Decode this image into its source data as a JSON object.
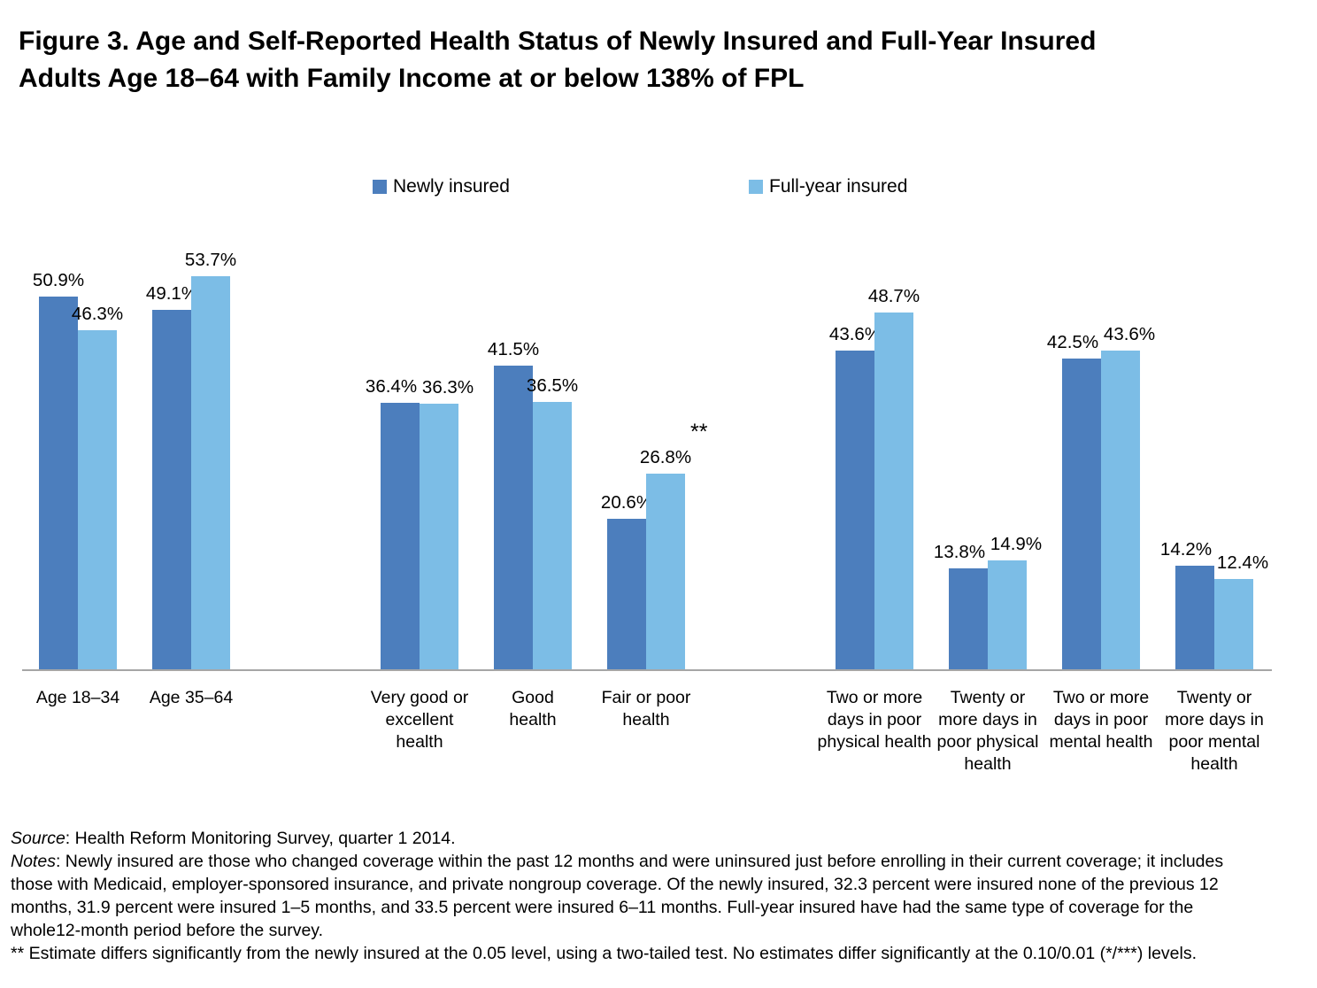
{
  "figure": {
    "title_lines": [
      "Figure 3. Age and Self-Reported Health Status of Newly Insured and Full-Year Insured",
      "Adults Age 18–64 with Family Income at or below 138% of FPL"
    ]
  },
  "chart_data": {
    "type": "bar",
    "title": "Figure 3. Age and Self-Reported Health Status of Newly Insured and Full-Year Insured Adults Age 18–64 with Family Income at or below 138% of FPL",
    "ylim": [
      0,
      60
    ],
    "grid": false,
    "legend_position": "top",
    "value_suffix": "%",
    "axis_color": "#a6a6a6",
    "series": [
      {
        "name": "Newly insured",
        "color": "#4c7ebd"
      },
      {
        "name": "Full-year insured",
        "color": "#7cbde6"
      }
    ],
    "groups": [
      {
        "categories": [
          {
            "label": "Age 18–34",
            "label_lines": [
              "Age 18–34"
            ],
            "values": [
              50.9,
              46.3
            ]
          },
          {
            "label": "Age 35–64",
            "label_lines": [
              "Age 35–64"
            ],
            "values": [
              49.1,
              53.7
            ]
          }
        ]
      },
      {
        "categories": [
          {
            "label": "Very good or excellent health",
            "label_lines": [
              "Very good or",
              "excellent",
              "health"
            ],
            "values": [
              36.4,
              36.3
            ]
          },
          {
            "label": "Good health",
            "label_lines": [
              "Good",
              "health"
            ],
            "values": [
              41.5,
              36.5
            ]
          },
          {
            "label": "Fair or poor health",
            "label_lines": [
              "Fair or poor",
              "health"
            ],
            "values": [
              20.6,
              26.8
            ],
            "annotation": "**",
            "annotation_series": 1
          }
        ]
      },
      {
        "categories": [
          {
            "label": "Two or more days in poor physical health",
            "label_lines": [
              "Two or more",
              "days in poor",
              "physical health"
            ],
            "values": [
              43.6,
              48.7
            ]
          },
          {
            "label": "Twenty or more days in poor physical health",
            "label_lines": [
              "Twenty or",
              "more days in",
              "poor physical",
              "health"
            ],
            "values": [
              13.8,
              14.9
            ]
          },
          {
            "label": "Two or more days in poor mental health",
            "label_lines": [
              "Two or more",
              "days in poor",
              "mental health"
            ],
            "values": [
              42.5,
              43.6
            ]
          },
          {
            "label": "Twenty or more days in poor mental health",
            "label_lines": [
              "Twenty or",
              "more days in",
              "poor mental",
              "health"
            ],
            "values": [
              14.2,
              12.4
            ]
          }
        ]
      }
    ]
  },
  "notes": {
    "source_prefix": "Source",
    "source_rest": ": Health Reform Monitoring Survey, quarter 1 2014.",
    "notes_prefix": "Notes",
    "notes_lines": [
      ": Newly insured are those who changed coverage within the past 12 months and were uninsured just before enrolling in their current coverage; it includes",
      "those with Medicaid, employer-sponsored insurance, and private nongroup coverage. Of the newly insured, 32.3 percent were insured none of the previous 12",
      "months, 31.9 percent were insured 1–5 months, and 33.5 percent were insured 6–11 months. Full-year insured have had the same type of coverage for the",
      "whole12-month period before the survey."
    ],
    "significance_line": "** Estimate differs significantly from the newly insured at the 0.05 level, using a two-tailed test. No estimates differ significantly at the 0.10/0.01 (*/***) levels."
  }
}
